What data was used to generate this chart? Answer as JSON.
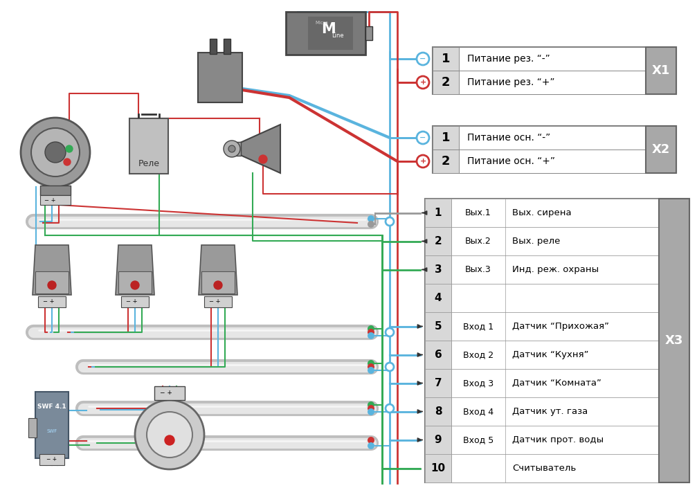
{
  "bg_color": "#ffffff",
  "x1_rows": [
    {
      "num": "1",
      "label": "Питание рез. “-”"
    },
    {
      "num": "2",
      "label": "Питание рез. “+”"
    }
  ],
  "x1_header": "X1",
  "x2_rows": [
    {
      "num": "1",
      "label": "Питание осн. “-”"
    },
    {
      "num": "2",
      "label": "Питание осн. “+”"
    }
  ],
  "x2_header": "X2",
  "x3_rows": [
    {
      "num": "1",
      "col2": "Вых.1",
      "col3": "Вых. сирена"
    },
    {
      "num": "2",
      "col2": "Вых.2",
      "col3": "Вых. реле"
    },
    {
      "num": "3",
      "col2": "Вых.3",
      "col3": "Инд. реж. охраны"
    },
    {
      "num": "4",
      "col2": "",
      "col3": ""
    },
    {
      "num": "5",
      "col2": "Вход 1",
      "col3": "Датчик “Прихожая”"
    },
    {
      "num": "6",
      "col2": "Вход 2",
      "col3": "Датчик “Кухня”"
    },
    {
      "num": "7",
      "col2": "Вход 3",
      "col3": "Датчик “Комната”"
    },
    {
      "num": "8",
      "col2": "Вход 4",
      "col3": "Датчик ут. газа"
    },
    {
      "num": "9",
      "col2": "Вход 5",
      "col3": "Датчик прот. воды"
    },
    {
      "num": "10",
      "col2": "",
      "col3": "Считыватель"
    }
  ],
  "x3_header": "X3",
  "blue": "#5ab4de",
  "red": "#cc3333",
  "green": "#33aa55",
  "gray_wire": "#999999",
  "header_gray": "#a8a8a8",
  "cell_num_bg": "#d8d8d8",
  "body_gray": "#909090",
  "light_gray": "#cccccc",
  "dark_gray": "#555555",
  "relay_label": "Реле"
}
